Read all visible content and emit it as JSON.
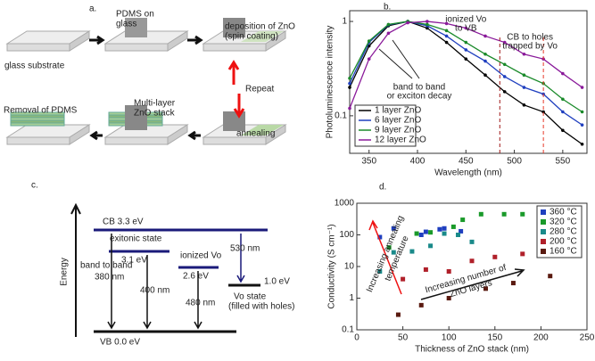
{
  "panel_a": {
    "label": "a.",
    "steps": [
      [
        "glass substrate"
      ],
      [
        "PDMS on",
        "glass"
      ],
      [
        "deposition of ZnO",
        "(spin coating)"
      ],
      [
        "annealing"
      ],
      [
        "Multi-layer",
        "ZnO stack"
      ],
      [
        "Removal of PDMS"
      ]
    ],
    "repeat": "Repeat"
  },
  "panel_c": {
    "label": "c.",
    "axis": "Energy",
    "cb": "CB 3.3 eV",
    "exciton": [
      "exitonic state",
      "3.1 eV"
    ],
    "ionized": [
      "ionized Vo",
      "2.6 eV"
    ],
    "vo_level": "1.0 eV",
    "vo_state": [
      "Vo state",
      "(filled with holes)"
    ],
    "vb": "VB 0.0 eV",
    "t380": [
      "band to band",
      "380 nm"
    ],
    "t400": "400 nm",
    "t480": "480 nm",
    "t530": "530 nm"
  },
  "chart_data": [
    {
      "type": "line",
      "panel_label": "b.",
      "xlabel": "Wavelength (nm)",
      "ylabel": "Photoluminescence intensity",
      "log_y": true,
      "legend": "lower left",
      "x": [
        330,
        350,
        370,
        390,
        410,
        430,
        450,
        470,
        490,
        510,
        530,
        550,
        570
      ],
      "series": [
        {
          "name": "1 layer ZnO",
          "color": "#000000",
          "values": [
            0.2,
            0.55,
            0.9,
            1.0,
            0.85,
            0.6,
            0.4,
            0.27,
            0.18,
            0.13,
            0.11,
            0.07,
            0.05
          ]
        },
        {
          "name": "6 layer ZnO",
          "color": "#1f3fbf",
          "values": [
            0.22,
            0.6,
            0.92,
            1.0,
            0.9,
            0.7,
            0.5,
            0.38,
            0.26,
            0.2,
            0.17,
            0.11,
            0.08
          ]
        },
        {
          "name": "9 layer ZnO",
          "color": "#1a8a2a",
          "values": [
            0.25,
            0.62,
            0.93,
            1.0,
            0.93,
            0.8,
            0.6,
            0.45,
            0.35,
            0.27,
            0.22,
            0.15,
            0.11
          ]
        },
        {
          "name": "12 layer ZnO",
          "color": "#8a1a9a",
          "values": [
            0.12,
            0.4,
            0.75,
            0.97,
            1.0,
            0.95,
            0.85,
            0.7,
            0.6,
            0.45,
            0.4,
            0.28,
            0.2
          ]
        }
      ],
      "xlim": [
        330,
        575
      ],
      "xticks": [
        350,
        400,
        450,
        500,
        550
      ],
      "ylim": [
        0.04,
        1.3
      ],
      "yticks": [
        0.1,
        1
      ],
      "vlines": [
        485,
        530
      ],
      "annotations": [
        [
          "ionized Vo",
          "to VB"
        ],
        [
          "CB to holes",
          "trapped by Vo"
        ],
        [
          "band to band",
          "or exciton decay"
        ]
      ]
    },
    {
      "type": "scatter",
      "panel_label": "d.",
      "xlabel": "Thickness of ZnO stack (nm)",
      "ylabel": "Conductivity (S cm⁻¹)",
      "log_y": true,
      "legend": "upper right",
      "series": [
        {
          "name": "360 °C",
          "color": "#1f3fbf",
          "x": [
            25,
            40,
            70,
            75,
            90,
            95,
            113
          ],
          "values": [
            85,
            160,
            100,
            125,
            150,
            160,
            130
          ]
        },
        {
          "name": "320 °C",
          "color": "#1a9a2a",
          "x": [
            35,
            65,
            80,
            105,
            115,
            135,
            160,
            180
          ],
          "values": [
            40,
            110,
            120,
            180,
            300,
            450,
            450,
            450
          ]
        },
        {
          "name": "280 °C",
          "color": "#1a8a8a",
          "x": [
            25,
            40,
            60,
            80,
            95,
            110,
            125
          ],
          "values": [
            7,
            28,
            30,
            45,
            110,
            100,
            60
          ]
        },
        {
          "name": "200 °C",
          "color": "#b0202a",
          "x": [
            50,
            75,
            100,
            125,
            150,
            180
          ],
          "values": [
            4,
            8,
            7,
            15,
            20,
            25
          ]
        },
        {
          "name": "160 °C",
          "color": "#5a1a10",
          "x": [
            45,
            70,
            100,
            140,
            170,
            210
          ],
          "values": [
            0.3,
            0.6,
            1,
            2,
            3,
            5
          ]
        }
      ],
      "xlim": [
        0,
        250
      ],
      "xticks": [
        0,
        50,
        100,
        150,
        200,
        250
      ],
      "ylim": [
        0.1,
        1000
      ],
      "yticks": [
        0.1,
        1,
        10,
        100,
        1000
      ],
      "annotations": [
        "Increasing annealing",
        "temperature",
        "Increasing number of",
        "ZnO layers"
      ]
    }
  ]
}
